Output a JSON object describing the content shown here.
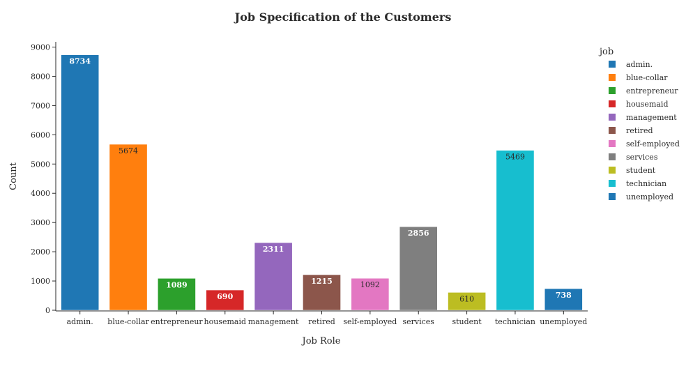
{
  "chart_data": {
    "type": "bar",
    "title": "Job Specification of the Customers",
    "xlabel": "Job Role",
    "ylabel": "Count",
    "categories": [
      "admin.",
      "blue-collar",
      "entrepreneur",
      "housemaid",
      "management",
      "retired",
      "self-employed",
      "services",
      "student",
      "technician",
      "unemployed"
    ],
    "values": [
      8734,
      5674,
      1089,
      690,
      2311,
      1215,
      1092,
      2856,
      610,
      5469,
      738
    ],
    "colors": [
      "#1f77b4",
      "#ff7f0e",
      "#2ca02c",
      "#d62728",
      "#9467bd",
      "#8c564b",
      "#e377c2",
      "#7f7f7f",
      "#bcbd22",
      "#17becf",
      "#1f77b4"
    ],
    "label_colors": [
      "#ffffff",
      "#2a2a2a",
      "#ffffff",
      "#ffffff",
      "#ffffff",
      "#ffffff",
      "#2a2a2a",
      "#ffffff",
      "#2a2a2a",
      "#2a2a2a",
      "#ffffff"
    ],
    "ylim": [
      0,
      9000
    ],
    "yticks": [
      0,
      1000,
      2000,
      3000,
      4000,
      5000,
      6000,
      7000,
      8000,
      9000
    ],
    "legend_title": "job",
    "legend_position": "right",
    "grid": false
  }
}
